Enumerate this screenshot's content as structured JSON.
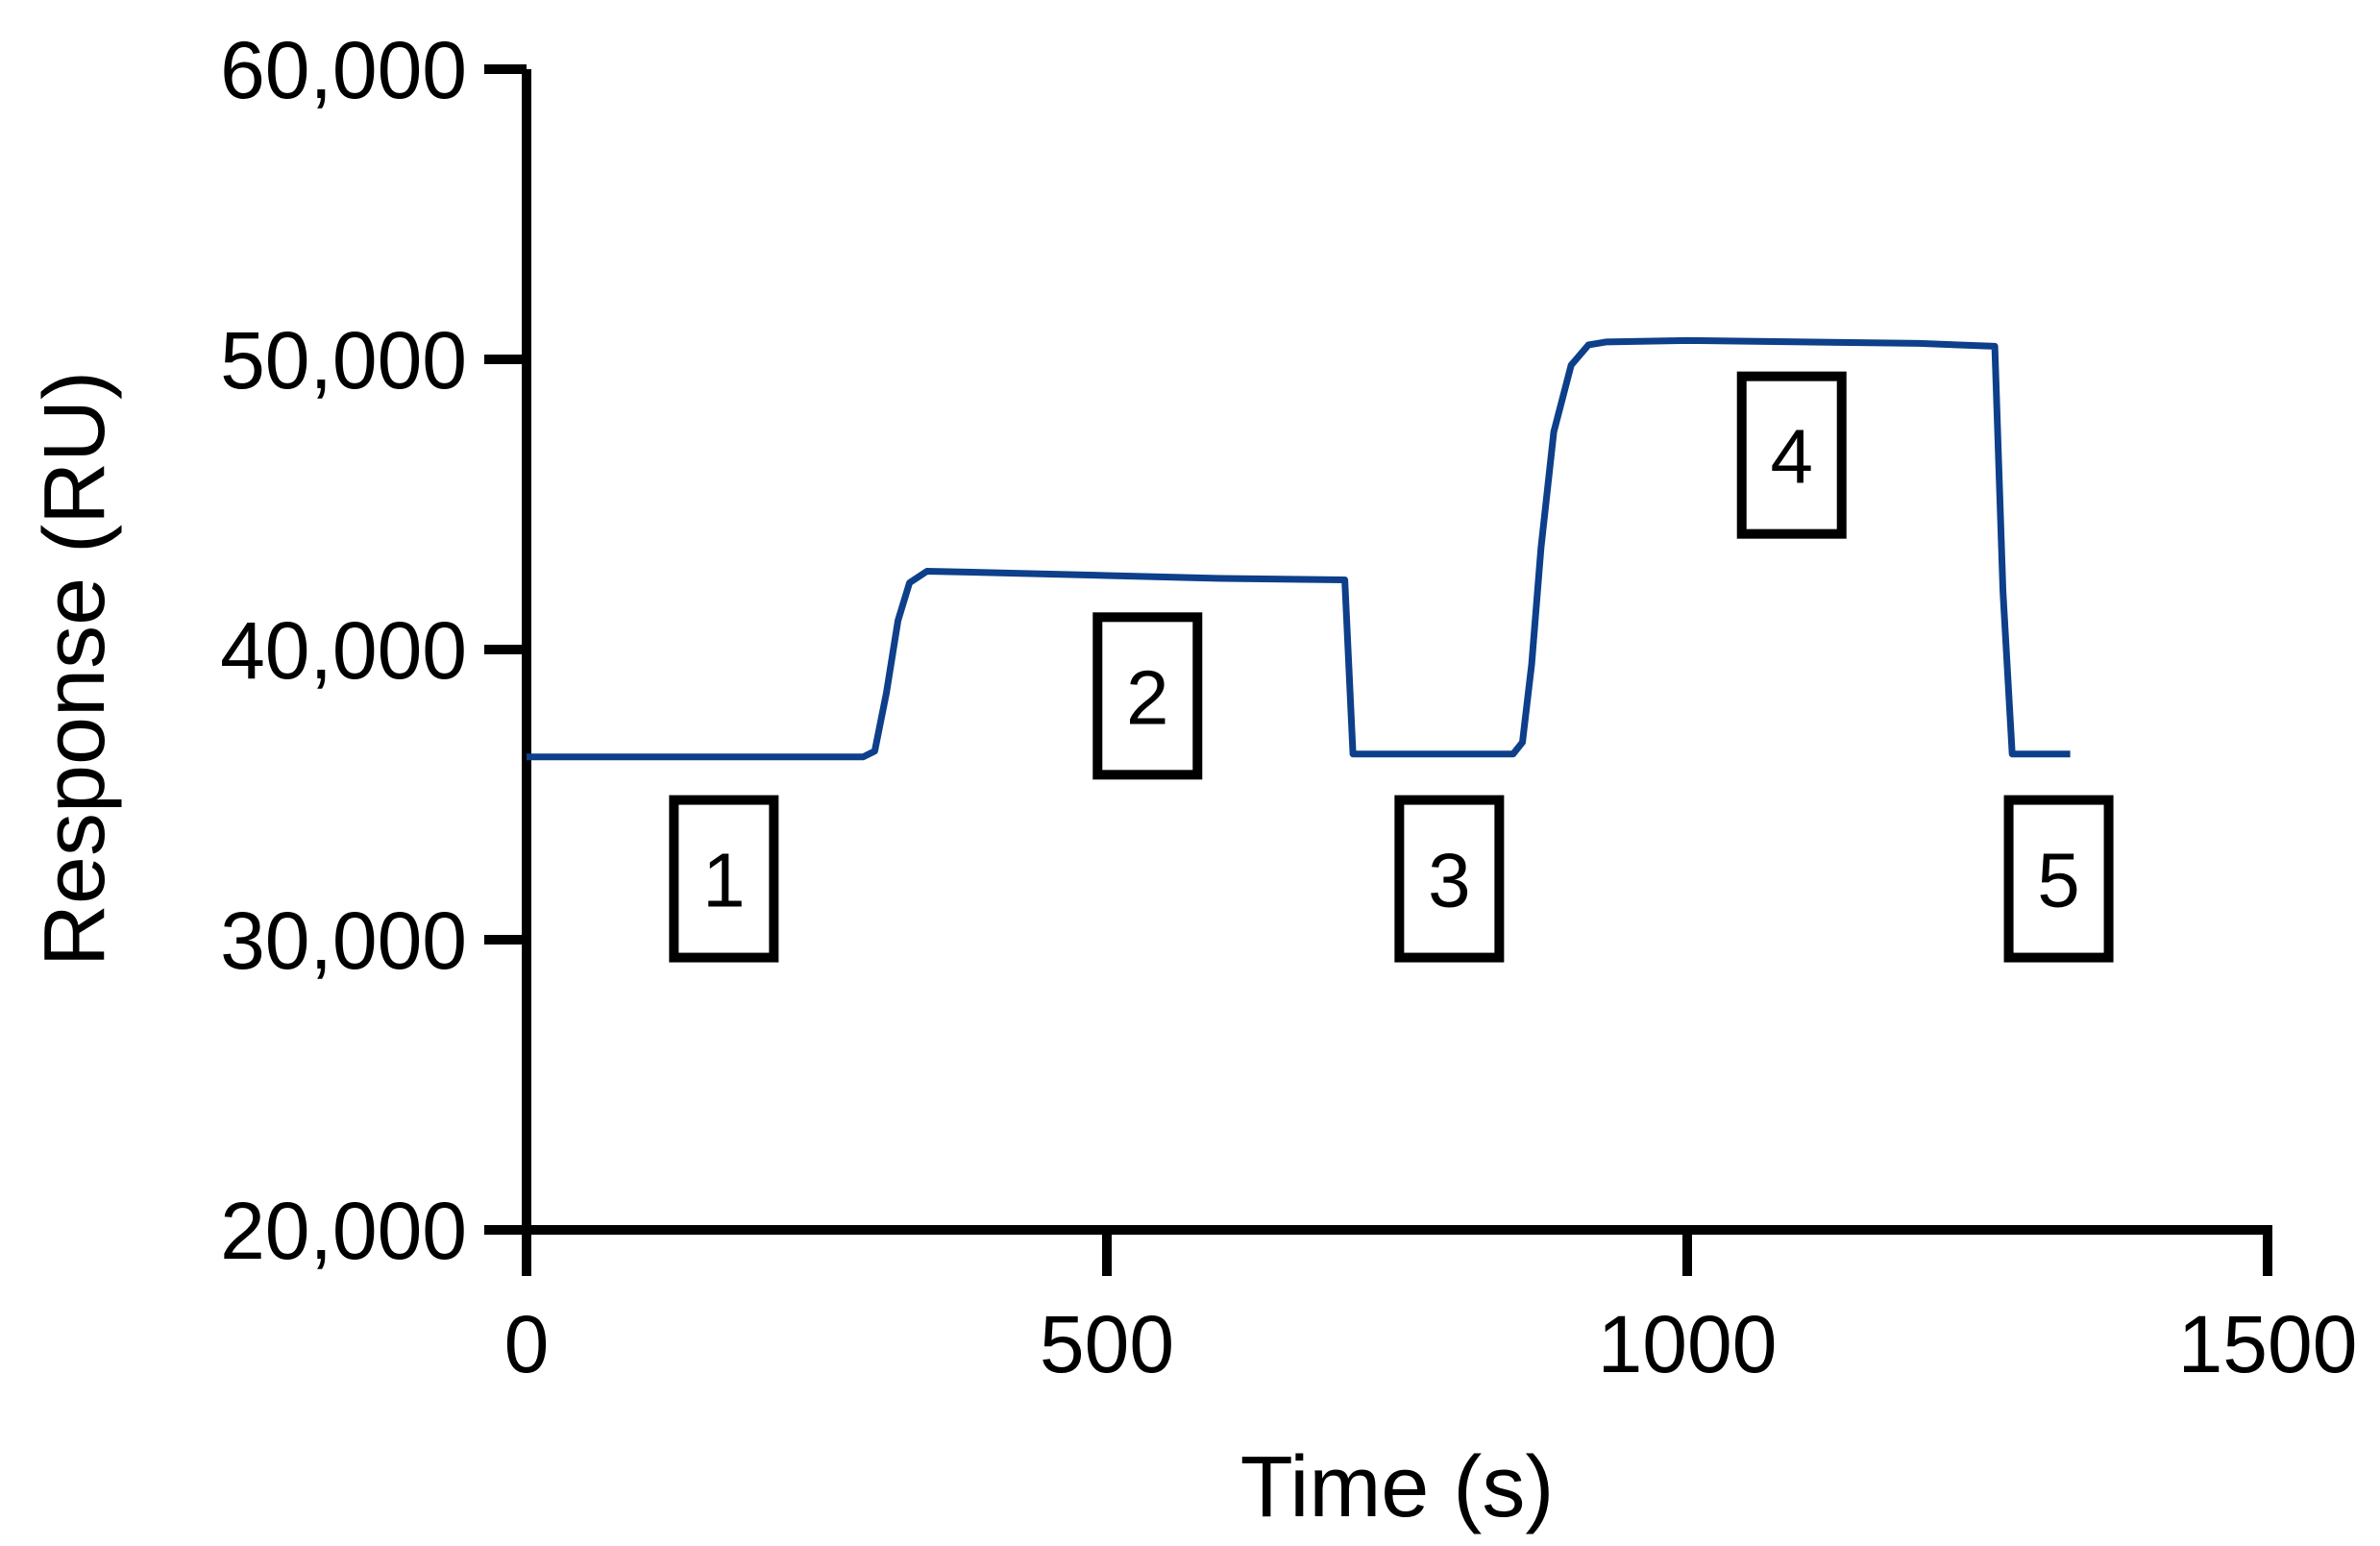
{
  "chart_data": {
    "type": "line",
    "xlabel": "Time (s)",
    "ylabel": "Response (RU)",
    "xlim": [
      0,
      1500
    ],
    "ylim": [
      20000,
      60000
    ],
    "x_ticks": [
      0,
      500,
      1000,
      1500
    ],
    "x_tick_labels": [
      "0",
      "500",
      "1000",
      "1500"
    ],
    "y_ticks": [
      20000,
      30000,
      40000,
      50000,
      60000
    ],
    "y_tick_labels": [
      "20,000",
      "30,000",
      "40,000",
      "50,000",
      "60,000"
    ],
    "grid": false,
    "legend": "none",
    "series": [
      {
        "color": "#0d3f8a",
        "x": [
          0,
          100,
          200,
          290,
          300,
          310,
          320,
          330,
          345,
          400,
          500,
          600,
          705,
          712,
          720,
          780,
          850,
          858,
          866,
          874,
          885,
          900,
          915,
          930,
          1000,
          1100,
          1200,
          1265,
          1272,
          1280,
          1300,
          1330
        ],
        "y": [
          36300,
          36300,
          36300,
          36300,
          36500,
          38500,
          41000,
          42300,
          42700,
          42650,
          42550,
          42450,
          42400,
          36400,
          36400,
          36400,
          36400,
          36800,
          39500,
          43500,
          47500,
          49800,
          50500,
          50600,
          50650,
          50600,
          50550,
          50450,
          42000,
          36400,
          36400,
          36400
        ]
      }
    ],
    "annotations": [
      {
        "label": "1",
        "x": 170,
        "y": 32100
      },
      {
        "label": "2",
        "x": 535,
        "y": 38400
      },
      {
        "label": "3",
        "x": 795,
        "y": 32100
      },
      {
        "label": "4",
        "x": 1090,
        "y": 46700
      },
      {
        "label": "5",
        "x": 1320,
        "y": 32100
      }
    ]
  }
}
